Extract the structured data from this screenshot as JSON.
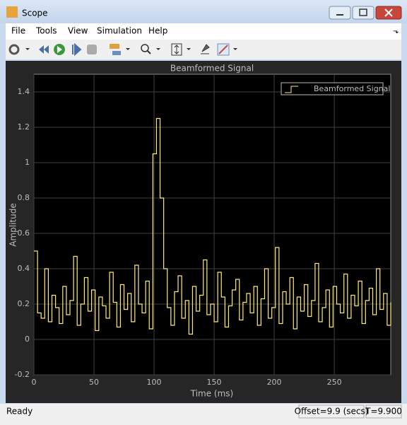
{
  "window": {
    "title": "Scope"
  },
  "menu": [
    "File",
    "Tools",
    "View",
    "Simulation",
    "Help"
  ],
  "chart_data": {
    "type": "line",
    "step": true,
    "title": "Beamformed Signal",
    "x_label": "Time (ms)",
    "y_label": "Amplitude",
    "x": [
      0,
      3,
      6,
      9,
      12,
      15,
      18,
      21,
      24,
      27,
      30,
      33,
      36,
      39,
      42,
      45,
      48,
      51,
      54,
      57,
      60,
      63,
      66,
      69,
      72,
      75,
      78,
      81,
      84,
      87,
      90,
      93,
      96,
      99,
      102,
      105,
      108,
      111,
      114,
      117,
      120,
      123,
      126,
      129,
      132,
      135,
      138,
      141,
      144,
      147,
      150,
      153,
      156,
      159,
      162,
      165,
      168,
      171,
      174,
      177,
      180,
      183,
      186,
      189,
      192,
      195,
      198,
      201,
      204,
      207,
      210,
      213,
      216,
      219,
      222,
      225,
      228,
      231,
      234,
      237,
      240,
      243,
      246,
      249,
      252,
      255,
      258,
      261,
      264,
      267,
      270,
      273,
      276,
      279,
      282,
      285,
      288,
      291,
      294,
      297
    ],
    "series": [
      {
        "name": "Beamformed Signal",
        "color": "#ffe97f",
        "values": [
          0.5,
          0.15,
          0.12,
          0.4,
          0.1,
          0.25,
          0.18,
          0.09,
          0.3,
          0.14,
          0.22,
          0.47,
          0.08,
          0.2,
          0.35,
          0.16,
          0.28,
          0.05,
          0.24,
          0.19,
          0.12,
          0.38,
          0.21,
          0.07,
          0.31,
          0.17,
          0.26,
          0.1,
          0.42,
          0.2,
          0.15,
          0.33,
          0.06,
          1.05,
          1.25,
          0.8,
          0.4,
          0.18,
          0.08,
          0.27,
          0.36,
          0.12,
          0.22,
          0.03,
          0.3,
          0.16,
          0.25,
          0.45,
          0.14,
          0.2,
          0.1,
          0.38,
          0.24,
          0.07,
          0.19,
          0.28,
          0.34,
          0.11,
          0.21,
          0.26,
          0.15,
          0.3,
          0.08,
          0.23,
          0.4,
          0.12,
          0.18,
          0.52,
          0.09,
          0.27,
          0.2,
          0.35,
          0.06,
          0.24,
          0.16,
          0.31,
          0.13,
          0.22,
          0.43,
          0.1,
          0.18,
          0.28,
          0.07,
          0.3,
          0.2,
          0.15,
          0.37,
          0.12,
          0.25,
          0.19,
          0.33,
          0.09,
          0.22,
          0.29,
          0.14,
          0.4,
          0.17,
          0.26,
          0.08,
          0.21
        ]
      }
    ],
    "xlim": [
      0,
      297
    ],
    "ylim": [
      -0.2,
      1.5
    ],
    "xticks": [
      0,
      50,
      100,
      150,
      200,
      250
    ],
    "yticks": [
      -0.2,
      0,
      0.2,
      0.4,
      0.6,
      0.8,
      1,
      1.2,
      1.4
    ],
    "grid": true,
    "legend": "upper-right"
  },
  "status": {
    "state": "Ready",
    "offset": "Offset=9.9 (secs)",
    "time": "T=9.900"
  }
}
